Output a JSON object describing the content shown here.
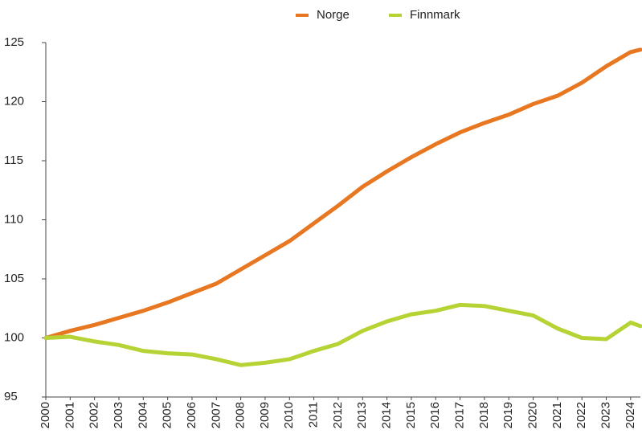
{
  "chart_data": {
    "type": "line",
    "x": [
      2000,
      2001,
      2002,
      2003,
      2004,
      2005,
      2006,
      2007,
      2008,
      2009,
      2010,
      2011,
      2012,
      2013,
      2014,
      2015,
      2016,
      2017,
      2018,
      2019,
      2020,
      2021,
      2022,
      2023,
      2024,
      2024.4
    ],
    "series": [
      {
        "name": "Norge",
        "color": "#e87722",
        "values": [
          100.0,
          100.6,
          101.1,
          101.7,
          102.3,
          103.0,
          103.8,
          104.6,
          105.8,
          107.0,
          108.2,
          109.7,
          111.2,
          112.8,
          114.1,
          115.3,
          116.4,
          117.4,
          118.2,
          118.9,
          119.8,
          120.5,
          121.6,
          123.0,
          124.2,
          124.4
        ]
      },
      {
        "name": "Finnmark",
        "color": "#b5d334",
        "values": [
          100.0,
          100.1,
          99.7,
          99.4,
          98.9,
          98.7,
          98.6,
          98.2,
          97.7,
          97.9,
          98.2,
          98.9,
          99.5,
          100.6,
          101.4,
          102.0,
          102.3,
          102.8,
          102.7,
          102.3,
          101.9,
          100.8,
          100.0,
          99.9,
          101.3,
          101.0
        ]
      }
    ],
    "xlim": [
      2000,
      2024.4
    ],
    "xticks": [
      2000,
      2001,
      2002,
      2003,
      2004,
      2005,
      2006,
      2007,
      2008,
      2009,
      2010,
      2011,
      2012,
      2013,
      2014,
      2015,
      2016,
      2017,
      2018,
      2019,
      2020,
      2021,
      2022,
      2023,
      2024
    ],
    "ylim": [
      95,
      125
    ],
    "yticks": [
      95,
      100,
      105,
      110,
      115,
      120,
      125
    ],
    "legend": "top"
  }
}
